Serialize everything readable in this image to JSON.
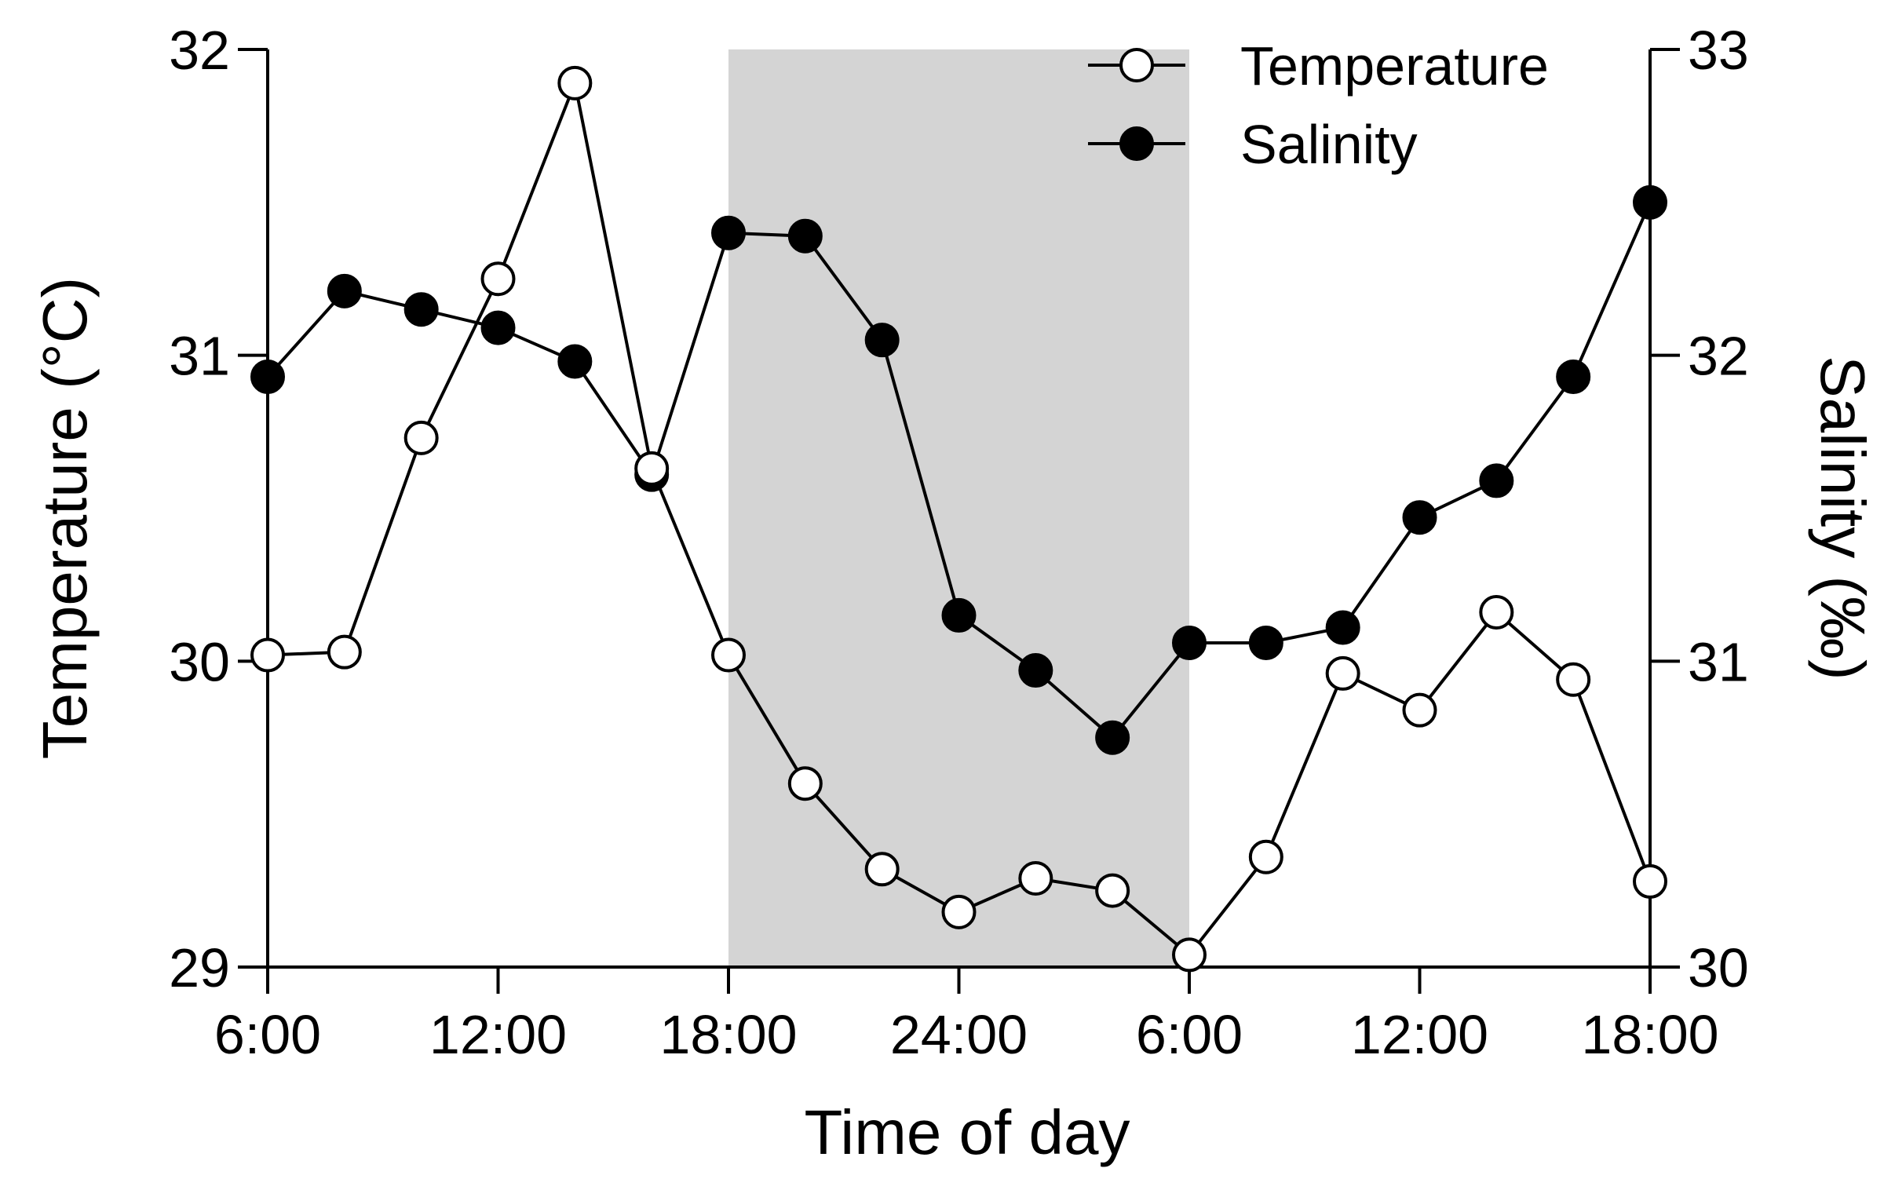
{
  "chart_data": {
    "type": "line",
    "xlabel": "Time of day",
    "ylabel_left": "Temperature (°C)",
    "ylabel_right": "Salinity (‰)",
    "ylim_left": [
      29,
      32
    ],
    "ylim_right": [
      30,
      33
    ],
    "yticks_left": [
      "29",
      "30",
      "31",
      "32"
    ],
    "yticks_right": [
      "30",
      "31",
      "32",
      "33"
    ],
    "x_range_hours": [
      0,
      36
    ],
    "x_ticks": [
      {
        "hour": 0,
        "label": "6:00"
      },
      {
        "hour": 6,
        "label": "12:00"
      },
      {
        "hour": 12,
        "label": "18:00"
      },
      {
        "hour": 18,
        "label": "24:00"
      },
      {
        "hour": 24,
        "label": "6:00"
      },
      {
        "hour": 30,
        "label": "12:00"
      },
      {
        "hour": 36,
        "label": "18:00"
      }
    ],
    "night_shading_hours": [
      12,
      24
    ],
    "legend_position": "top-right",
    "series": [
      {
        "name": "Temperature",
        "axis": "left",
        "marker": "open-circle",
        "x": [
          0,
          2,
          4,
          6,
          8,
          10,
          12,
          14,
          16,
          18,
          20,
          22,
          24,
          26,
          28,
          30,
          32,
          34,
          36
        ],
        "values": [
          30.02,
          30.03,
          30.73,
          31.25,
          31.89,
          30.63,
          30.02,
          29.6,
          29.32,
          29.18,
          29.29,
          29.25,
          29.04,
          29.36,
          29.96,
          29.84,
          30.16,
          29.94,
          29.28
        ]
      },
      {
        "name": "Salinity",
        "axis": "right",
        "marker": "filled-circle",
        "x": [
          0,
          2,
          4,
          6,
          8,
          10,
          12,
          14,
          16,
          18,
          20,
          22,
          24,
          26,
          28,
          30,
          32,
          34,
          36
        ],
        "values": [
          31.93,
          32.21,
          32.15,
          32.09,
          31.98,
          31.61,
          32.4,
          32.39,
          32.05,
          31.15,
          30.97,
          30.75,
          31.06,
          31.06,
          31.11,
          31.47,
          31.59,
          31.93,
          32.5
        ]
      }
    ]
  }
}
